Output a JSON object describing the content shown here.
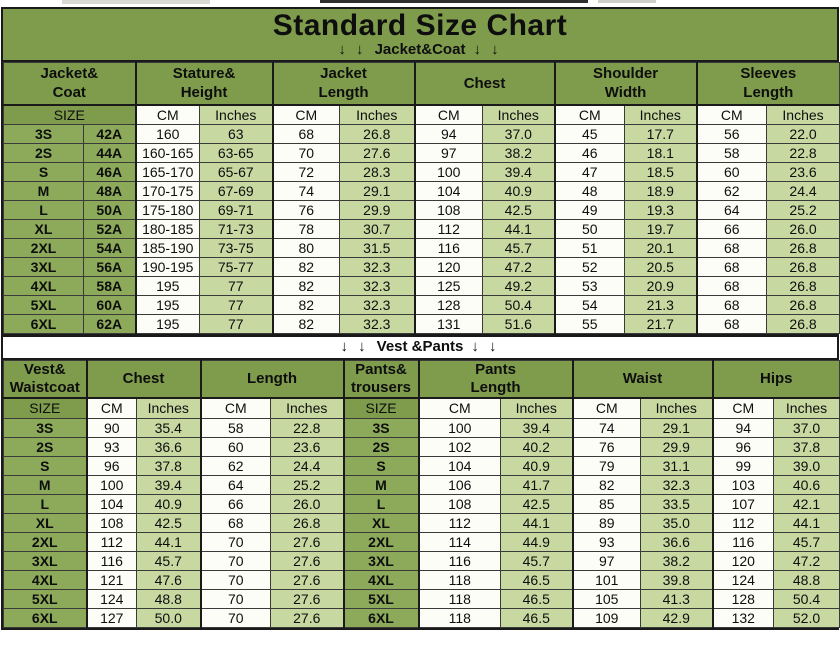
{
  "title": "Standard Size Chart",
  "colors": {
    "header_green": "#7f9c4c",
    "size_green": "#8caa5a",
    "light_green": "#c7d8a1",
    "cell_white": "#fdfdf8",
    "band_white": "#ffffff",
    "border_dark": "#1a1a1a",
    "text_dark": "#0e0e0e"
  },
  "jacket": {
    "banner_arrows": "↓ ↓",
    "banner_label": "Jacket&Coat",
    "groups": [
      "Jacket&\nCoat",
      "Stature&\nHeight",
      "Jacket\nLength",
      "Chest",
      "Shoulder\nWidth",
      "Sleeves\nLength"
    ],
    "subheader": [
      "SIZE",
      "CM",
      "Inches",
      "CM",
      "Inches",
      "CM",
      "Inches",
      "CM",
      "Inches",
      "CM",
      "Inches"
    ],
    "rows": [
      [
        "3S",
        "42A",
        "160",
        "63",
        "68",
        "26.8",
        "94",
        "37.0",
        "45",
        "17.7",
        "56",
        "22.0"
      ],
      [
        "2S",
        "44A",
        "160-165",
        "63-65",
        "70",
        "27.6",
        "97",
        "38.2",
        "46",
        "18.1",
        "58",
        "22.8"
      ],
      [
        "S",
        "46A",
        "165-170",
        "65-67",
        "72",
        "28.3",
        "100",
        "39.4",
        "47",
        "18.5",
        "60",
        "23.6"
      ],
      [
        "M",
        "48A",
        "170-175",
        "67-69",
        "74",
        "29.1",
        "104",
        "40.9",
        "48",
        "18.9",
        "62",
        "24.4"
      ],
      [
        "L",
        "50A",
        "175-180",
        "69-71",
        "76",
        "29.9",
        "108",
        "42.5",
        "49",
        "19.3",
        "64",
        "25.2"
      ],
      [
        "XL",
        "52A",
        "180-185",
        "71-73",
        "78",
        "30.7",
        "112",
        "44.1",
        "50",
        "19.7",
        "66",
        "26.0"
      ],
      [
        "2XL",
        "54A",
        "185-190",
        "73-75",
        "80",
        "31.5",
        "116",
        "45.7",
        "51",
        "20.1",
        "68",
        "26.8"
      ],
      [
        "3XL",
        "56A",
        "190-195",
        "75-77",
        "82",
        "32.3",
        "120",
        "47.2",
        "52",
        "20.5",
        "68",
        "26.8"
      ],
      [
        "4XL",
        "58A",
        "195",
        "77",
        "82",
        "32.3",
        "125",
        "49.2",
        "53",
        "20.9",
        "68",
        "26.8"
      ],
      [
        "5XL",
        "60A",
        "195",
        "77",
        "82",
        "32.3",
        "128",
        "50.4",
        "54",
        "21.3",
        "68",
        "26.8"
      ],
      [
        "6XL",
        "62A",
        "195",
        "77",
        "82",
        "32.3",
        "131",
        "51.6",
        "55",
        "21.7",
        "68",
        "26.8"
      ]
    ]
  },
  "vest": {
    "banner_arrows": "↓ ↓",
    "banner_label": "Vest &Pants",
    "groups": [
      "Vest&\nWaistcoat",
      "Chest",
      "Length",
      "Pants&\ntrousers",
      "Pants\nLength",
      "Waist",
      "Hips"
    ],
    "subheader": [
      "SIZE",
      "CM",
      "Inches",
      "CM",
      "Inches",
      "SIZE",
      "CM",
      "Inches",
      "CM",
      "Inches",
      "CM",
      "Inches"
    ],
    "rows": [
      [
        "3S",
        "90",
        "35.4",
        "58",
        "22.8",
        "3S",
        "100",
        "39.4",
        "74",
        "29.1",
        "94",
        "37.0"
      ],
      [
        "2S",
        "93",
        "36.6",
        "60",
        "23.6",
        "2S",
        "102",
        "40.2",
        "76",
        "29.9",
        "96",
        "37.8"
      ],
      [
        "S",
        "96",
        "37.8",
        "62",
        "24.4",
        "S",
        "104",
        "40.9",
        "79",
        "31.1",
        "99",
        "39.0"
      ],
      [
        "M",
        "100",
        "39.4",
        "64",
        "25.2",
        "M",
        "106",
        "41.7",
        "82",
        "32.3",
        "103",
        "40.6"
      ],
      [
        "L",
        "104",
        "40.9",
        "66",
        "26.0",
        "L",
        "108",
        "42.5",
        "85",
        "33.5",
        "107",
        "42.1"
      ],
      [
        "XL",
        "108",
        "42.5",
        "68",
        "26.8",
        "XL",
        "112",
        "44.1",
        "89",
        "35.0",
        "112",
        "44.1"
      ],
      [
        "2XL",
        "112",
        "44.1",
        "70",
        "27.6",
        "2XL",
        "114",
        "44.9",
        "93",
        "36.6",
        "116",
        "45.7"
      ],
      [
        "3XL",
        "116",
        "45.7",
        "70",
        "27.6",
        "3XL",
        "116",
        "45.7",
        "97",
        "38.2",
        "120",
        "47.2"
      ],
      [
        "4XL",
        "121",
        "47.6",
        "70",
        "27.6",
        "4XL",
        "118",
        "46.5",
        "101",
        "39.8",
        "124",
        "48.8"
      ],
      [
        "5XL",
        "124",
        "48.8",
        "70",
        "27.6",
        "5XL",
        "118",
        "46.5",
        "105",
        "41.3",
        "128",
        "50.4"
      ],
      [
        "6XL",
        "127",
        "50.0",
        "70",
        "27.6",
        "6XL",
        "118",
        "46.5",
        "109",
        "42.9",
        "132",
        "52.0"
      ]
    ]
  }
}
